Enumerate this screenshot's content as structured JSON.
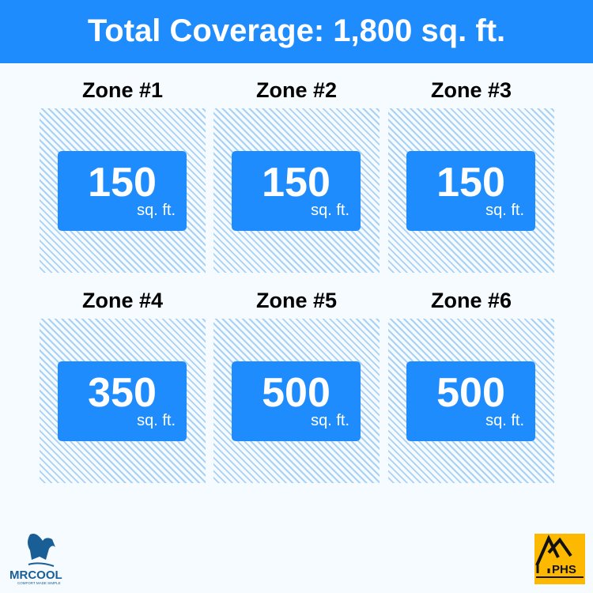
{
  "header": {
    "title": "Total Coverage: 1,800 sq. ft."
  },
  "zones": [
    {
      "label": "Zone #1",
      "value": "150",
      "unit": "sq. ft."
    },
    {
      "label": "Zone #2",
      "value": "150",
      "unit": "sq. ft."
    },
    {
      "label": "Zone #3",
      "value": "150",
      "unit": "sq. ft."
    },
    {
      "label": "Zone #4",
      "value": "350",
      "unit": "sq. ft."
    },
    {
      "label": "Zone #5",
      "value": "500",
      "unit": "sq. ft."
    },
    {
      "label": "Zone #6",
      "value": "500",
      "unit": "sq. ft."
    }
  ],
  "logos": {
    "left": "MRCOOL",
    "left_tagline": "COMFORT MADE SIMPLE",
    "right": "PHS"
  },
  "colors": {
    "accent": "#1e8cfc",
    "hatch": "#a9d1f6",
    "phs": "#fdb900",
    "mrcool": "#1a5e96"
  }
}
